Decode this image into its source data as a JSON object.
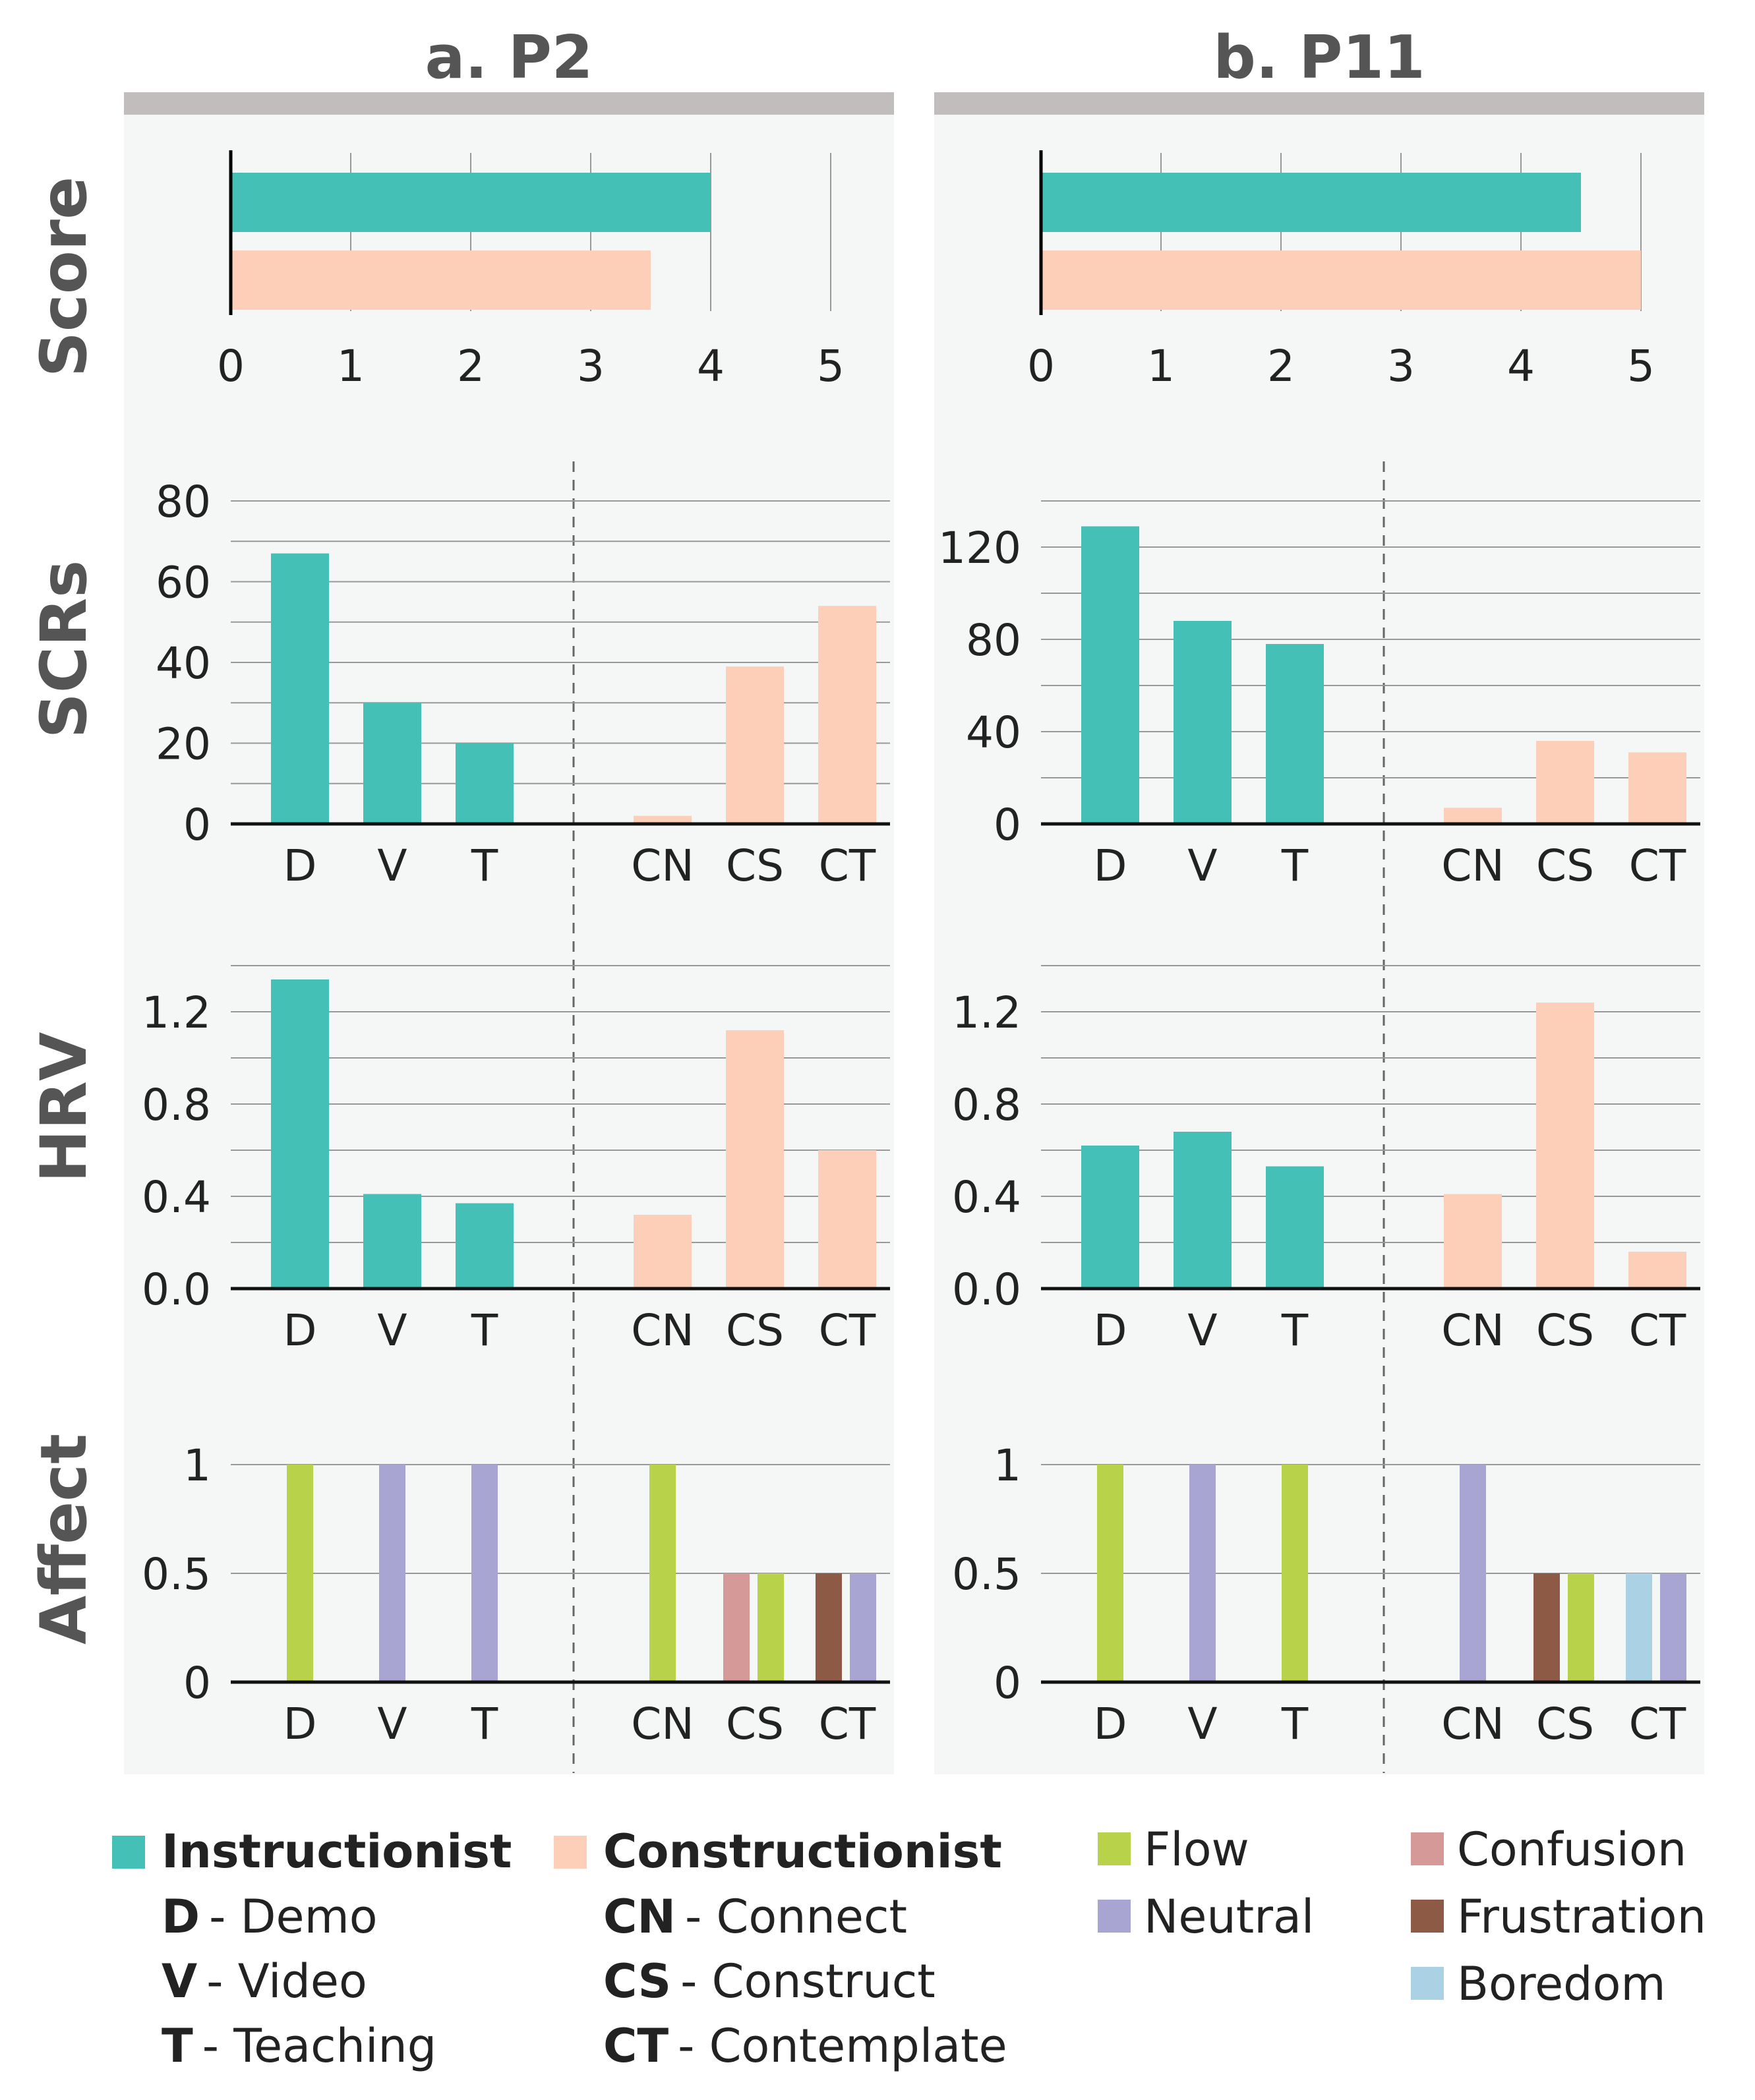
{
  "colors": {
    "instructionist": "#44c0b6",
    "constructionist": "#fdcfb8",
    "flow": "#b8d24a",
    "neutral": "#a9a5d2",
    "confusion": "#d59a98",
    "frustration": "#8c5a45",
    "boredom": "#aad2e4",
    "panel_bg": "#f5f7f6",
    "header_bar": "#c1bdbd",
    "grid": "#999999",
    "text": "#222222",
    "title_text": "#555555"
  },
  "row_labels": {
    "score": "Score",
    "scrs": "SCRs",
    "hrv": "HRV",
    "affect": "Affect"
  },
  "chart_data": [
    {
      "panel": "a",
      "title": "a. P2",
      "score": {
        "type": "bar",
        "orientation": "horizontal",
        "series": [
          {
            "name": "Instructionist",
            "value": 4
          },
          {
            "name": "Constructionist",
            "value": 3.5
          }
        ],
        "xlim": [
          0,
          5
        ],
        "ticks": [
          "0",
          "1",
          "2",
          "3",
          "4",
          "5"
        ]
      },
      "scrs": {
        "type": "bar",
        "categories": [
          "D",
          "V",
          "T",
          "CN",
          "CS",
          "CT"
        ],
        "values": [
          67,
          30,
          20,
          2,
          39,
          54
        ],
        "ylim": [
          0,
          80
        ],
        "ticks": [
          "0",
          "20",
          "40",
          "60",
          "80"
        ]
      },
      "hrv": {
        "type": "bar",
        "categories": [
          "D",
          "V",
          "T",
          "CN",
          "CS",
          "CT"
        ],
        "values": [
          1.34,
          0.41,
          0.37,
          0.32,
          1.12,
          0.6
        ],
        "ylim": [
          0,
          1.4
        ],
        "ticks": [
          "0.0",
          "0.4",
          "0.8",
          "1.2"
        ]
      },
      "affect": {
        "type": "bar",
        "categories": [
          "D",
          "V",
          "T",
          "CN",
          "CS",
          "CT"
        ],
        "values": [
          [
            {
              "state": "flow",
              "value": 1
            }
          ],
          [
            {
              "state": "neutral",
              "value": 1
            }
          ],
          [
            {
              "state": "neutral",
              "value": 1
            }
          ],
          [
            {
              "state": "flow",
              "value": 1
            }
          ],
          [
            {
              "state": "confusion",
              "value": 0.5
            },
            {
              "state": "flow",
              "value": 0.5
            }
          ],
          [
            {
              "state": "frustration",
              "value": 0.5
            },
            {
              "state": "neutral",
              "value": 0.5
            }
          ]
        ],
        "ylim": [
          0,
          1
        ],
        "ticks": [
          "0",
          "0.5",
          "1"
        ]
      }
    },
    {
      "panel": "b",
      "title": "b. P11",
      "score": {
        "type": "bar",
        "orientation": "horizontal",
        "series": [
          {
            "name": "Instructionist",
            "value": 4.5
          },
          {
            "name": "Constructionist",
            "value": 5
          }
        ],
        "xlim": [
          0,
          5
        ],
        "ticks": [
          "0",
          "1",
          "2",
          "3",
          "4",
          "5"
        ]
      },
      "scrs": {
        "type": "bar",
        "categories": [
          "D",
          "V",
          "T",
          "CN",
          "CS",
          "CT"
        ],
        "values": [
          129,
          88,
          78,
          7,
          36,
          31
        ],
        "ylim": [
          0,
          140
        ],
        "ticks": [
          "0",
          "40",
          "80",
          "120"
        ]
      },
      "hrv": {
        "type": "bar",
        "categories": [
          "D",
          "V",
          "T",
          "CN",
          "CS",
          "CT"
        ],
        "values": [
          0.62,
          0.68,
          0.53,
          0.41,
          1.24,
          0.16
        ],
        "ylim": [
          0,
          1.4
        ],
        "ticks": [
          "0.0",
          "0.4",
          "0.8",
          "1.2"
        ]
      },
      "affect": {
        "type": "bar",
        "categories": [
          "D",
          "V",
          "T",
          "CN",
          "CS",
          "CT"
        ],
        "values": [
          [
            {
              "state": "flow",
              "value": 1
            }
          ],
          [
            {
              "state": "neutral",
              "value": 1
            }
          ],
          [
            {
              "state": "flow",
              "value": 1
            }
          ],
          [
            {
              "state": "neutral",
              "value": 1
            }
          ],
          [
            {
              "state": "frustration",
              "value": 0.5
            },
            {
              "state": "flow",
              "value": 0.5
            }
          ],
          [
            {
              "state": "boredom",
              "value": 0.5
            },
            {
              "state": "neutral",
              "value": 0.5
            }
          ]
        ],
        "ylim": [
          0,
          1
        ],
        "ticks": [
          "0",
          "0.5",
          "1"
        ]
      }
    }
  ],
  "legend": {
    "instructionist": {
      "title": "Instructionist",
      "items": [
        {
          "abbr": "D",
          "label": "- Demo"
        },
        {
          "abbr": "V",
          "label": "- Video"
        },
        {
          "abbr": "T",
          "label": "- Teaching"
        }
      ]
    },
    "constructionist": {
      "title": "Constructionist",
      "items": [
        {
          "abbr": "CN",
          "label": "- Connect"
        },
        {
          "abbr": "CS",
          "label": "- Construct"
        },
        {
          "abbr": "CT",
          "label": "- Contemplate"
        }
      ]
    },
    "affect_states": [
      {
        "key": "flow",
        "label": "Flow"
      },
      {
        "key": "neutral",
        "label": "Neutral"
      },
      {
        "key": "confusion",
        "label": "Confusion"
      },
      {
        "key": "frustration",
        "label": "Frustration"
      },
      {
        "key": "boredom",
        "label": "Boredom"
      }
    ]
  }
}
